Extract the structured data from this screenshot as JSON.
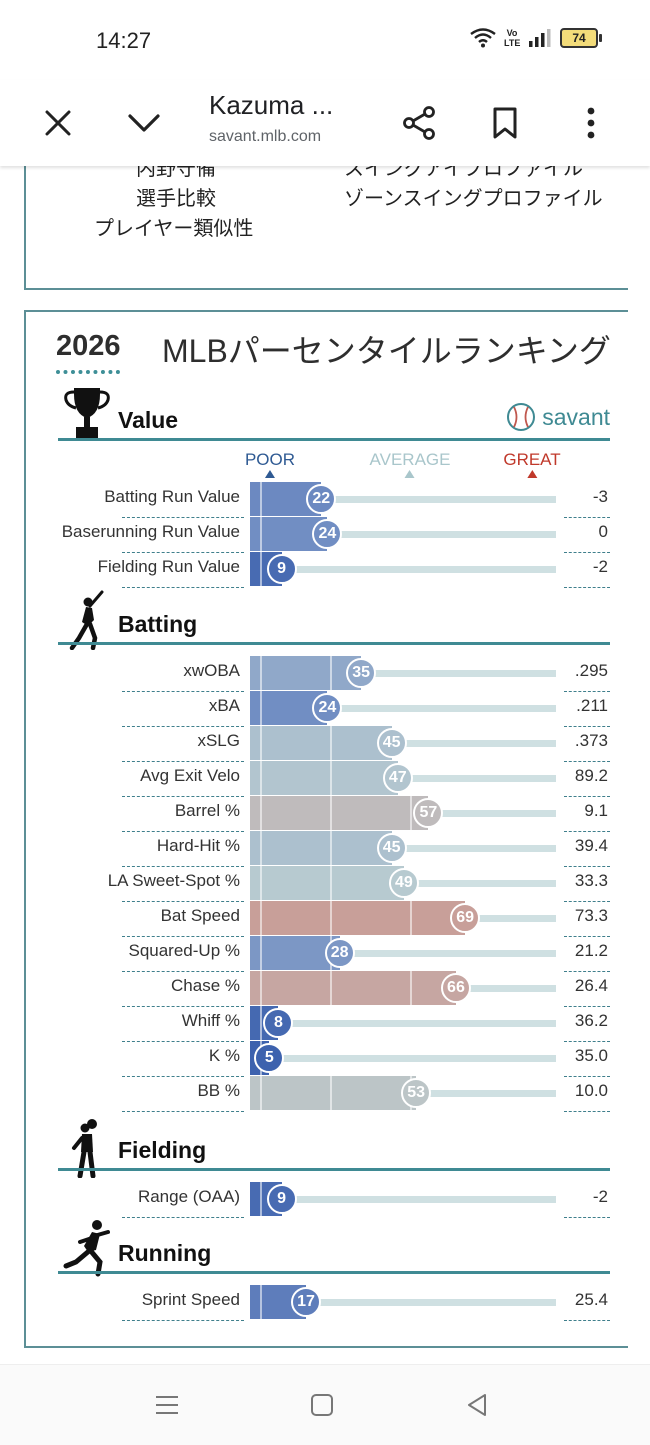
{
  "status_bar": {
    "time": "14:27",
    "network": "Vo LTE",
    "battery": "74"
  },
  "browser": {
    "title": "Kazuma ...",
    "url": "savant.mlb.com"
  },
  "top_links": {
    "left": [
      "内野守備",
      "選手比較",
      "プレイヤー類似性"
    ],
    "right": [
      "スイングアイプロファイル",
      "ゾーンスイングプロファイル"
    ]
  },
  "card": {
    "year": "2026",
    "heading": "MLBパーセンタイルランキング",
    "brand": "savant",
    "scale": {
      "poor": "POOR",
      "average": "AVERAGE",
      "great": "GREAT"
    },
    "sections": [
      {
        "title": "Value",
        "metrics": [
          {
            "label": "Batting Run Value",
            "percentile": 22,
            "value": "-3"
          },
          {
            "label": "Baserunning Run Value",
            "percentile": 24,
            "value": "0"
          },
          {
            "label": "Fielding Run Value",
            "percentile": 9,
            "value": "-2"
          }
        ]
      },
      {
        "title": "Batting",
        "metrics": [
          {
            "label": "xwOBA",
            "percentile": 35,
            "value": ".295"
          },
          {
            "label": "xBA",
            "percentile": 24,
            "value": ".211"
          },
          {
            "label": "xSLG",
            "percentile": 45,
            "value": ".373"
          },
          {
            "label": "Avg Exit Velo",
            "percentile": 47,
            "value": "89.2"
          },
          {
            "label": "Barrel %",
            "percentile": 57,
            "value": "9.1"
          },
          {
            "label": "Hard-Hit %",
            "percentile": 45,
            "value": "39.4"
          },
          {
            "label": "LA Sweet-Spot %",
            "percentile": 49,
            "value": "33.3"
          },
          {
            "label": "Bat Speed",
            "percentile": 69,
            "value": "73.3"
          },
          {
            "label": "Squared-Up %",
            "percentile": 28,
            "value": "21.2"
          },
          {
            "label": "Chase %",
            "percentile": 66,
            "value": "26.4"
          },
          {
            "label": "Whiff %",
            "percentile": 8,
            "value": "36.2"
          },
          {
            "label": "K %",
            "percentile": 5,
            "value": "35.0"
          },
          {
            "label": "BB %",
            "percentile": 53,
            "value": "10.0"
          }
        ]
      },
      {
        "title": "Fielding",
        "metrics": [
          {
            "label": "Range (OAA)",
            "percentile": 9,
            "value": "-2"
          }
        ]
      },
      {
        "title": "Running",
        "metrics": [
          {
            "label": "Sprint Speed",
            "percentile": 17,
            "value": "25.4"
          }
        ]
      }
    ]
  },
  "colors": {
    "teal": "#3f8a93",
    "poor_blue": "#2f58a6",
    "avg_gray": "#b9cbcf",
    "great_red": "#c0584e"
  }
}
